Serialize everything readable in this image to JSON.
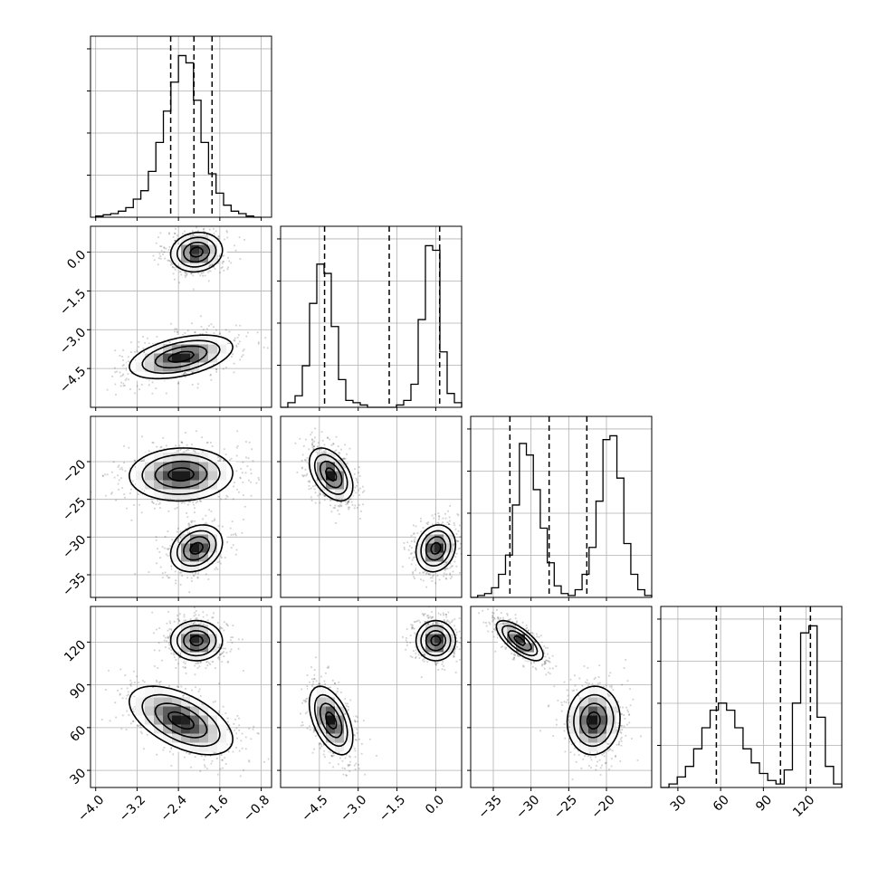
{
  "chart_data": {
    "type": "scatter",
    "subtype": "corner-plot",
    "title": "",
    "grid": true,
    "params": [
      {
        "name": "",
        "range": [
          -4.1,
          -0.6
        ],
        "ticks": [
          -4.0,
          -3.2,
          -2.4,
          -1.6,
          -0.8
        ],
        "tick_labels": [
          "−4.0",
          "−3.2",
          "−2.4",
          "−1.6",
          "−0.8"
        ]
      },
      {
        "name": "",
        "range": [
          -6.0,
          1.0
        ],
        "ticks": [
          -4.5,
          -3.0,
          -1.5,
          0.0
        ],
        "tick_labels": [
          "−4.5",
          "−3.0",
          "−1.5",
          "0.0"
        ]
      },
      {
        "name": "",
        "range": [
          -38.0,
          -14.0
        ],
        "ticks": [
          -35,
          -30,
          -25,
          -20
        ],
        "tick_labels": [
          "−35",
          "−30",
          "−25",
          "−20"
        ]
      },
      {
        "name": "",
        "range": [
          18,
          145
        ],
        "ticks": [
          30,
          60,
          90,
          120
        ],
        "tick_labels": [
          "30",
          "60",
          "90",
          "120"
        ]
      }
    ],
    "quantiles": [
      [
        -2.55,
        -2.1,
        -1.75
      ],
      [
        -4.3,
        -1.8,
        0.15
      ],
      [
        -32.8,
        -27.6,
        -22.6
      ],
      [
        57,
        102,
        123
      ]
    ],
    "histograms": [
      {
        "edges_range": [
          -4.0,
          -0.8
        ],
        "counts": [
          1,
          2,
          3,
          5,
          8,
          15,
          22,
          38,
          62,
          88,
          112,
          134,
          128,
          97,
          62,
          36,
          20,
          10,
          5,
          3,
          1,
          0
        ]
      },
      {
        "edges_range": [
          -6.0,
          1.0
        ],
        "counts": [
          0,
          2,
          5,
          18,
          45,
          62,
          58,
          35,
          12,
          3,
          2,
          1,
          0,
          0,
          0,
          0,
          1,
          3,
          10,
          38,
          70,
          68,
          24,
          6,
          2
        ]
      },
      {
        "edges_range": [
          -38.0,
          -14.0
        ],
        "counts": [
          0,
          1,
          2,
          5,
          12,
          22,
          48,
          80,
          74,
          56,
          36,
          18,
          6,
          2,
          1,
          4,
          12,
          26,
          50,
          82,
          84,
          62,
          28,
          12,
          4,
          1
        ]
      },
      {
        "edges_range": [
          18,
          145
        ],
        "counts": [
          0,
          1,
          3,
          6,
          11,
          17,
          22,
          24,
          22,
          17,
          11,
          7,
          4,
          2,
          1,
          5,
          24,
          44,
          46,
          20,
          6,
          1
        ]
      }
    ],
    "modes": [
      {
        "means": [
          -2.05,
          0.0,
          -31.5,
          121
        ],
        "sds": [
          0.25,
          0.38,
          1.55,
          7.0
        ],
        "rho": {
          "0-1": 0.1,
          "0-2": 0.25,
          "0-3": 0.0,
          "1-2": 0.15,
          "1-3": 0.0,
          "2-3": -0.72
        },
        "weight": 1.0
      },
      {
        "means": [
          -2.35,
          -4.05,
          -21.7,
          65
        ],
        "sds": [
          0.5,
          0.42,
          1.75,
          12.0
        ],
        "rho": {
          "0-1": 0.45,
          "0-2": 0.05,
          "0-3": -0.55,
          "1-2": -0.45,
          "1-3": -0.5,
          "2-3": 0.05
        },
        "weight": 1.0
      }
    ],
    "colors": {
      "line": "#000000",
      "grid": "#b0b0b0",
      "density": "#000000"
    }
  }
}
